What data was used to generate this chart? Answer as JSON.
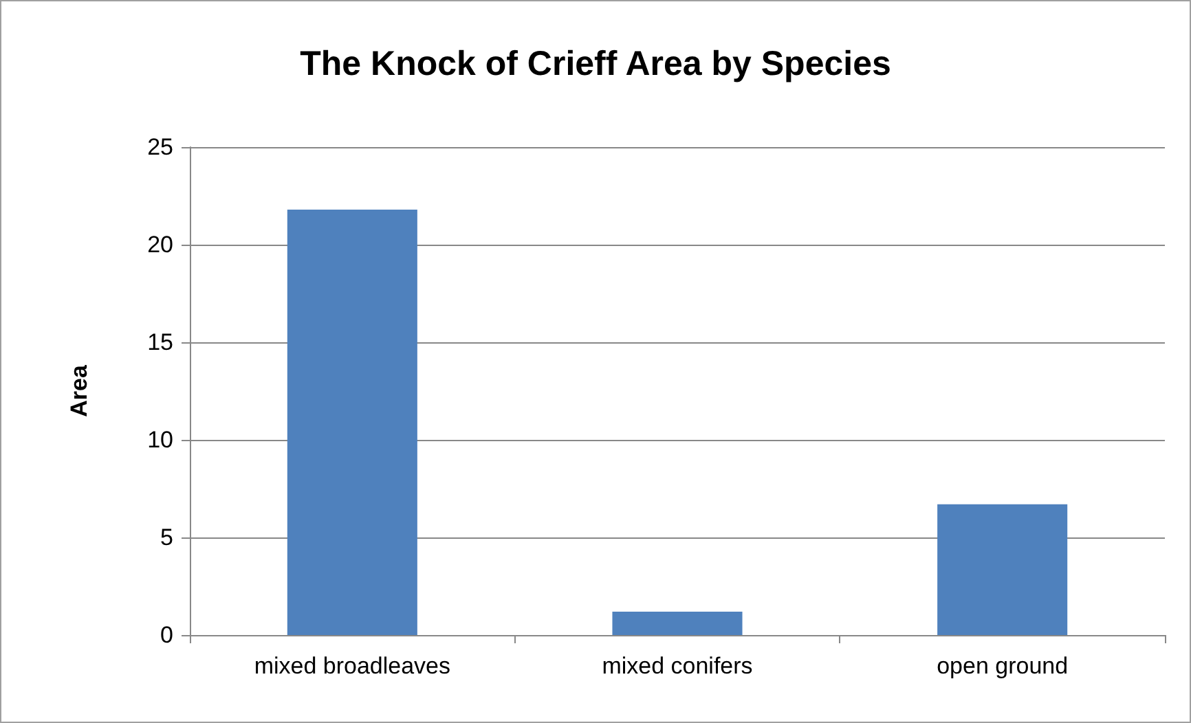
{
  "chart_data": {
    "type": "bar",
    "title": "The Knock of Crieff Area by Species",
    "ylabel": "Area",
    "categories": [
      "mixed broadleaves",
      "mixed conifers",
      "open ground"
    ],
    "values": [
      21.8,
      1.2,
      6.7
    ],
    "color": "#4f81bd",
    "ylim": [
      0,
      25
    ],
    "yticks": [
      0,
      5,
      10,
      15,
      20,
      25
    ],
    "grid": "y"
  }
}
